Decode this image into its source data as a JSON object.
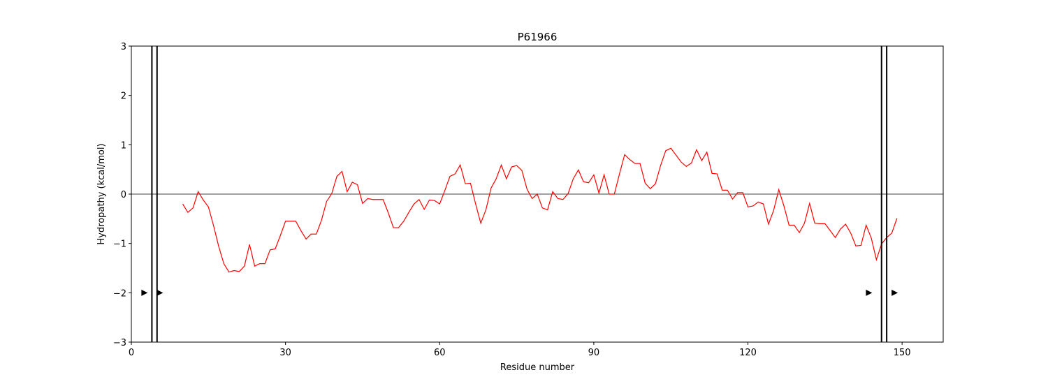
{
  "chart_data": {
    "type": "line",
    "title": "P61966",
    "xlabel": "Residue number",
    "ylabel": "Hydropathy (kcal/mol)",
    "xlim": [
      0,
      158
    ],
    "ylim": [
      -3,
      3
    ],
    "xticks": [
      0,
      30,
      60,
      90,
      120,
      150
    ],
    "yticks": [
      -3,
      -2,
      -1,
      0,
      1,
      2,
      3
    ],
    "grid": false,
    "zero_line": 0,
    "line_color": "#ff0000",
    "series": [
      {
        "x": [
          10,
          11,
          12,
          13,
          14,
          15,
          16,
          17,
          18,
          19,
          20,
          21,
          22,
          23,
          24,
          25,
          26,
          27,
          28,
          29,
          30,
          31,
          32,
          33,
          34,
          35,
          36,
          37,
          38,
          39,
          40,
          41,
          42,
          43,
          44,
          45,
          46,
          47,
          48,
          49,
          50,
          51,
          52,
          53,
          54,
          55,
          56,
          57,
          58,
          59,
          60,
          61,
          62,
          63,
          64,
          65,
          66,
          67,
          68,
          69,
          70,
          71,
          72,
          73,
          74,
          75,
          76,
          77,
          78,
          79,
          80,
          81,
          82,
          83,
          84,
          85,
          86,
          87,
          88,
          89,
          90,
          91,
          92,
          93,
          94,
          95,
          96,
          97,
          98,
          99,
          100,
          101,
          102,
          103,
          104,
          105,
          106,
          107,
          108,
          109,
          110,
          111,
          112,
          113,
          114,
          115,
          116,
          117,
          118,
          119,
          120,
          121,
          122,
          123,
          124,
          125,
          126,
          127,
          128,
          129,
          130,
          131,
          132,
          133,
          134,
          135,
          136,
          137,
          138,
          139,
          140,
          141,
          142,
          143,
          144,
          145,
          146,
          147,
          148,
          149
        ],
        "y": [
          -0.2,
          -0.37,
          -0.28,
          0.05,
          -0.12,
          -0.26,
          -0.64,
          -1.06,
          -1.41,
          -1.58,
          -1.55,
          -1.57,
          -1.46,
          -1.02,
          -1.46,
          -1.41,
          -1.41,
          -1.13,
          -1.11,
          -0.84,
          -0.55,
          -0.55,
          -0.55,
          -0.74,
          -0.91,
          -0.81,
          -0.81,
          -0.53,
          -0.15,
          0.01,
          0.36,
          0.46,
          0.05,
          0.24,
          0.19,
          -0.19,
          -0.09,
          -0.11,
          -0.11,
          -0.11,
          -0.38,
          -0.68,
          -0.68,
          -0.55,
          -0.37,
          -0.2,
          -0.11,
          -0.31,
          -0.12,
          -0.13,
          -0.2,
          0.07,
          0.36,
          0.41,
          0.59,
          0.21,
          0.22,
          -0.2,
          -0.59,
          -0.32,
          0.12,
          0.31,
          0.59,
          0.31,
          0.55,
          0.58,
          0.48,
          0.1,
          -0.09,
          0.0,
          -0.28,
          -0.32,
          0.05,
          -0.09,
          -0.11,
          0.01,
          0.31,
          0.49,
          0.25,
          0.23,
          0.39,
          0.02,
          0.39,
          0.0,
          0.0,
          0.41,
          0.8,
          0.7,
          0.62,
          0.62,
          0.22,
          0.11,
          0.21,
          0.58,
          0.88,
          0.93,
          0.79,
          0.65,
          0.56,
          0.63,
          0.9,
          0.68,
          0.85,
          0.42,
          0.41,
          0.08,
          0.08,
          -0.1,
          0.03,
          0.03,
          -0.26,
          -0.24,
          -0.16,
          -0.2,
          -0.61,
          -0.33,
          0.09,
          -0.24,
          -0.63,
          -0.63,
          -0.78,
          -0.59,
          -0.19,
          -0.59,
          -0.6,
          -0.6,
          -0.74,
          -0.88,
          -0.71,
          -0.61,
          -0.79,
          -1.05,
          -1.04,
          -0.63,
          -0.89,
          -1.33,
          -1.01,
          -0.88,
          -0.79,
          -0.49
        ]
      }
    ],
    "vertical_lines": [
      4,
      5,
      146,
      147
    ],
    "markers": [
      {
        "x": 2.5,
        "y": -2
      },
      {
        "x": 5.5,
        "y": -2
      },
      {
        "x": 143.5,
        "y": -2
      },
      {
        "x": 148.5,
        "y": -2
      }
    ]
  }
}
